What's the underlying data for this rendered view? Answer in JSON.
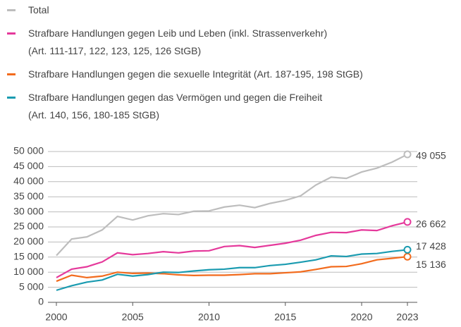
{
  "chart_data": {
    "type": "line",
    "x": [
      2000,
      2001,
      2002,
      2003,
      2004,
      2005,
      2006,
      2007,
      2008,
      2009,
      2010,
      2011,
      2012,
      2013,
      2014,
      2015,
      2016,
      2017,
      2018,
      2019,
      2020,
      2021,
      2022,
      2023
    ],
    "series": [
      {
        "name": "Total",
        "color": "#bdbdbd",
        "values": [
          15500,
          21000,
          21700,
          24000,
          28500,
          27300,
          28700,
          29400,
          29100,
          30200,
          30300,
          31600,
          32200,
          31400,
          32800,
          33800,
          35300,
          38900,
          41500,
          41100,
          43200,
          44500,
          46500,
          49055
        ],
        "value_labels": [
          null,
          null,
          null,
          null,
          null,
          null,
          null,
          null,
          null,
          null,
          null,
          null,
          null,
          null,
          null,
          null,
          null,
          null,
          null,
          null,
          null,
          null,
          null,
          "49 055"
        ]
      },
      {
        "name": "Strafbare Handlungen gegen Leib und Leben (inkl. Strassenverkehr)\n(Art. 111-117, 122, 123, 125, 126 StGB)",
        "color": "#e5399b",
        "values": [
          8200,
          11000,
          11800,
          13400,
          16400,
          15800,
          16200,
          16800,
          16400,
          17000,
          17100,
          18500,
          18800,
          18200,
          18900,
          19600,
          20600,
          22200,
          23200,
          23100,
          24000,
          23800,
          25400,
          26662
        ],
        "value_labels": [
          null,
          null,
          null,
          null,
          null,
          null,
          null,
          null,
          null,
          null,
          null,
          null,
          null,
          null,
          null,
          null,
          null,
          null,
          null,
          null,
          null,
          null,
          null,
          "26 662"
        ]
      },
      {
        "name": "Strafbare Handlungen gegen die sexuelle Integrität (Art. 187-195, 198 StGB)",
        "color": "#f26b1d",
        "values": [
          7000,
          9000,
          8200,
          8700,
          10000,
          9600,
          9700,
          9500,
          9100,
          8900,
          9000,
          9000,
          9200,
          9500,
          9500,
          9800,
          10100,
          10900,
          11800,
          11900,
          12800,
          14100,
          14600,
          15136
        ],
        "value_labels": [
          null,
          null,
          null,
          null,
          null,
          null,
          null,
          null,
          null,
          null,
          null,
          null,
          null,
          null,
          null,
          null,
          null,
          null,
          null,
          null,
          null,
          null,
          null,
          "15 136"
        ]
      },
      {
        "name": "Strafbare Handlungen gegen das Vermögen und gegen die Freiheit\n(Art. 140, 156, 180-185 StGB)",
        "color": "#1a9bb0",
        "values": [
          4000,
          5500,
          6700,
          7400,
          9300,
          8700,
          9200,
          10000,
          9900,
          10400,
          10800,
          11000,
          11500,
          11500,
          12200,
          12600,
          13300,
          14100,
          15400,
          15200,
          16000,
          16200,
          16900,
          17428
        ],
        "value_labels": [
          null,
          null,
          null,
          null,
          null,
          null,
          null,
          null,
          null,
          null,
          null,
          null,
          null,
          null,
          null,
          null,
          null,
          null,
          null,
          null,
          null,
          null,
          null,
          "17 428"
        ]
      }
    ],
    "xlim": [
      2000,
      2023
    ],
    "xticks": [
      2000,
      2005,
      2010,
      2015,
      2020,
      2023
    ],
    "ylim": [
      0,
      50000
    ],
    "yticks": [
      0,
      {
        "value": 5000,
        "label": "5 000"
      },
      {
        "value": 10000,
        "label": "10 000"
      },
      {
        "value": 15000,
        "label": "15 000"
      },
      {
        "value": 20000,
        "label": "20 000"
      },
      {
        "value": 25000,
        "label": "25 000"
      },
      {
        "value": 30000,
        "label": "30 000"
      },
      {
        "value": 35000,
        "label": "35 000"
      },
      {
        "value": 40000,
        "label": "40 000"
      },
      {
        "value": 45000,
        "label": "45 000"
      },
      {
        "value": 50000,
        "label": "50 000"
      }
    ],
    "grid": true,
    "legend": "top-left"
  }
}
